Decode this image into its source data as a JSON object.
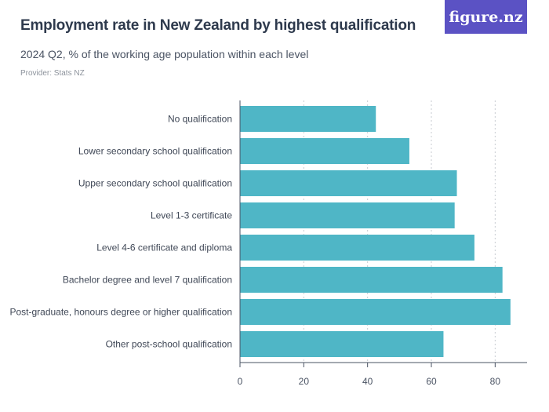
{
  "header": {
    "title": "Employment rate in New Zealand by highest qualification",
    "subtitle": "2024 Q2, % of the working age population within each level",
    "provider": "Provider: Stats NZ",
    "logo_text": "figure.nz"
  },
  "colors": {
    "bar": "#4fb6c6",
    "logo_bg": "#5b52c4"
  },
  "chart_data": {
    "type": "bar",
    "orientation": "horizontal",
    "categories": [
      "No qualification",
      "Lower secondary school qualification",
      "Upper secondary school qualification",
      "Level 1-3 certificate",
      "Level 4-6 certificate and diploma",
      "Bachelor degree and level 7 qualification",
      "Post-graduate, honours degree or higher qualification",
      "Other post-school qualification"
    ],
    "values": [
      42.6,
      53.1,
      68.0,
      67.3,
      73.5,
      82.3,
      84.8,
      63.8
    ],
    "xlim": [
      0,
      90
    ],
    "xticks": [
      0,
      20,
      40,
      60,
      80
    ],
    "grid": true
  }
}
